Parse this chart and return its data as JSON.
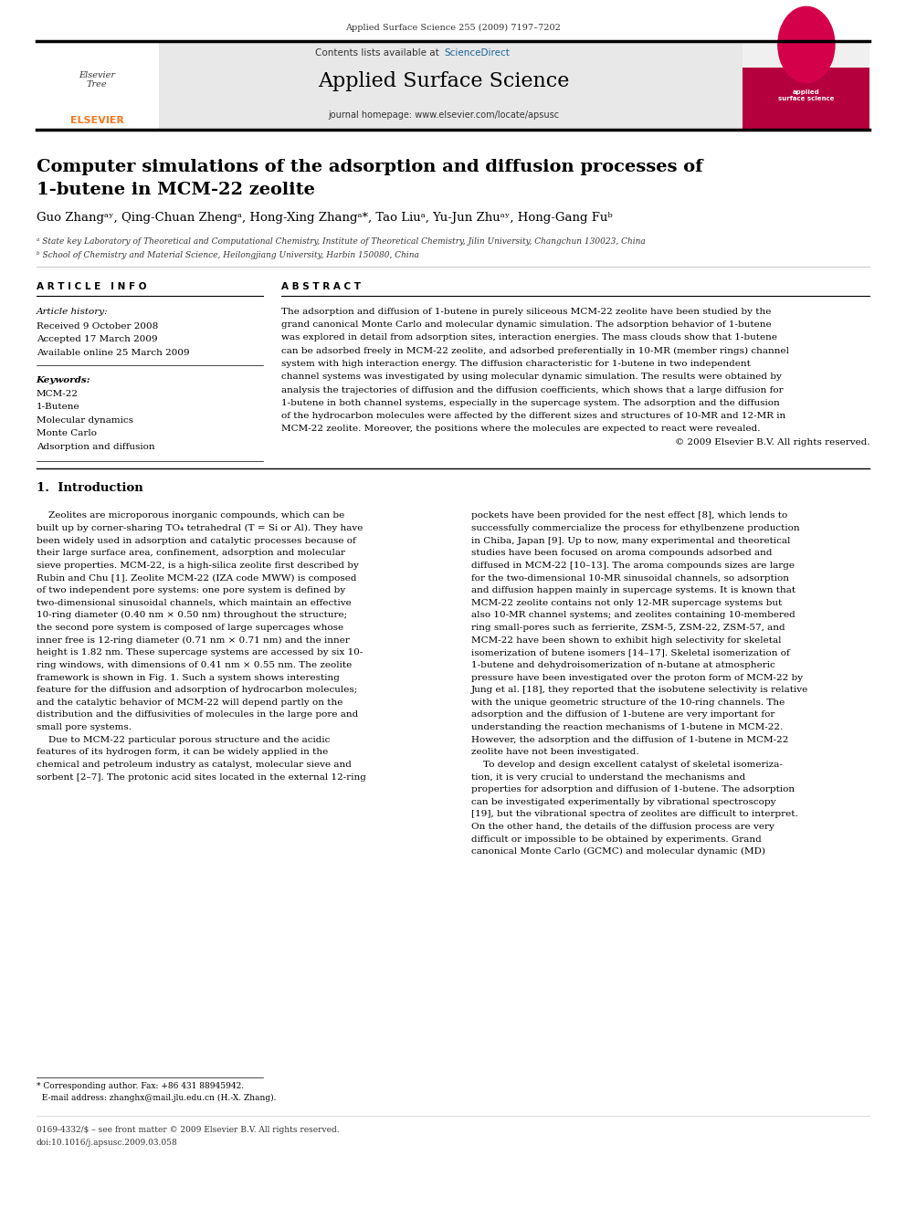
{
  "page_width": 9.92,
  "page_height": 13.23,
  "bg_color": "#ffffff",
  "journal_ref": "Applied Surface Science 255 (2009) 7197–7202",
  "header_bg": "#e8e8e8",
  "header_text1": "Contents lists available at ",
  "header_link": "ScienceDirect",
  "journal_title": "Applied Surface Science",
  "journal_homepage": "journal homepage: www.elsevier.com/locate/apsusc",
  "article_title_line1": "Computer simulations of the adsorption and diffusion processes of",
  "article_title_line2": "1-butene in MCM-22 zeolite",
  "author_str": "Guo Zhangᵃʸ, Qing-Chuan Zhengᵃ, Hong-Xing Zhangᵃ*, Tao Liuᵃ, Yu-Jun Zhuᵃʸ, Hong-Gang Fuᵇ",
  "affil_a": "ᵃ State key Laboratory of Theoretical and Computational Chemistry, Institute of Theoretical Chemistry, Jilin University, Changchun 130023, China",
  "affil_b": "ᵇ School of Chemistry and Material Science, Heilongjiang University, Harbin 150080, China",
  "section_article_info": "A R T I C L E   I N F O",
  "article_history_label": "Article history:",
  "received": "Received 9 October 2008",
  "accepted": "Accepted 17 March 2009",
  "available": "Available online 25 March 2009",
  "keywords_label": "Keywords:",
  "keywords": [
    "MCM-22",
    "1-Butene",
    "Molecular dynamics",
    "Monte Carlo",
    "Adsorption and diffusion"
  ],
  "section_abstract": "A B S T R A C T",
  "abstract_lines": [
    "The adsorption and diffusion of 1-butene in purely siliceous MCM-22 zeolite have been studied by the",
    "grand canonical Monte Carlo and molecular dynamic simulation. The adsorption behavior of 1-butene",
    "was explored in detail from adsorption sites, interaction energies. The mass clouds show that 1-butene",
    "can be adsorbed freely in MCM-22 zeolite, and adsorbed preferentially in 10-MR (member rings) channel",
    "system with high interaction energy. The diffusion characteristic for 1-butene in two independent",
    "channel systems was investigated by using molecular dynamic simulation. The results were obtained by",
    "analysis the trajectories of diffusion and the diffusion coefficients, which shows that a large diffusion for",
    "1-butene in both channel systems, especially in the supercage system. The adsorption and the diffusion",
    "of the hydrocarbon molecules were affected by the different sizes and structures of 10-MR and 12-MR in",
    "MCM-22 zeolite. Moreover, the positions where the molecules are expected to react were revealed.",
    "© 2009 Elsevier B.V. All rights reserved."
  ],
  "section_intro": "1.  Introduction",
  "col1_lines": [
    "    Zeolites are microporous inorganic compounds, which can be",
    "built up by corner-sharing TO₄ tetrahedral (T = Si or Al). They have",
    "been widely used in adsorption and catalytic processes because of",
    "their large surface area, confinement, adsorption and molecular",
    "sieve properties. MCM-22, is a high-silica zeolite first described by",
    "Rubin and Chu [1]. Zeolite MCM-22 (IZA code MWW) is composed",
    "of two independent pore systems: one pore system is defined by",
    "two-dimensional sinusoidal channels, which maintain an effective",
    "10-ring diameter (0.40 nm × 0.50 nm) throughout the structure;",
    "the second pore system is composed of large supercages whose",
    "inner free is 12-ring diameter (0.71 nm × 0.71 nm) and the inner",
    "height is 1.82 nm. These supercage systems are accessed by six 10-",
    "ring windows, with dimensions of 0.41 nm × 0.55 nm. The zeolite",
    "framework is shown in Fig. 1. Such a system shows interesting",
    "feature for the diffusion and adsorption of hydrocarbon molecules;",
    "and the catalytic behavior of MCM-22 will depend partly on the",
    "distribution and the diffusivities of molecules in the large pore and",
    "small pore systems.",
    "    Due to MCM-22 particular porous structure and the acidic",
    "features of its hydrogen form, it can be widely applied in the",
    "chemical and petroleum industry as catalyst, molecular sieve and",
    "sorbent [2–7]. The protonic acid sites located in the external 12-ring"
  ],
  "col2_lines": [
    "pockets have been provided for the nest effect [8], which lends to",
    "successfully commercialize the process for ethylbenzene production",
    "in Chiba, Japan [9]. Up to now, many experimental and theoretical",
    "studies have been focused on aroma compounds adsorbed and",
    "diffused in MCM-22 [10–13]. The aroma compounds sizes are large",
    "for the two-dimensional 10-MR sinusoidal channels, so adsorption",
    "and diffusion happen mainly in supercage systems. It is known that",
    "MCM-22 zeolite contains not only 12-MR supercage systems but",
    "also 10-MR channel systems; and zeolites containing 10-membered",
    "ring small-pores such as ferrierite, ZSM-5, ZSM-22, ZSM-57, and",
    "MCM-22 have been shown to exhibit high selectivity for skeletal",
    "isomerization of butene isomers [14–17]. Skeletal isomerization of",
    "1-butene and dehydroisomerization of n-butane at atmospheric",
    "pressure have been investigated over the proton form of MCM-22 by",
    "Jung et al. [18], they reported that the isobutene selectivity is relative",
    "with the unique geometric structure of the 10-ring channels. The",
    "adsorption and the diffusion of 1-butene are very important for",
    "understanding the reaction mechanisms of 1-butene in MCM-22.",
    "However, the adsorption and the diffusion of 1-butene in MCM-22",
    "zeolite have not been investigated.",
    "    To develop and design excellent catalyst of skeletal isomeriza-",
    "tion, it is very crucial to understand the mechanisms and",
    "properties for adsorption and diffusion of 1-butene. The adsorption",
    "can be investigated experimentally by vibrational spectroscopy",
    "[19], but the vibrational spectra of zeolites are difficult to interpret.",
    "On the other hand, the details of the diffusion process are very",
    "difficult or impossible to be obtained by experiments. Grand",
    "canonical Monte Carlo (GCMC) and molecular dynamic (MD)"
  ],
  "footnote_star": "* Corresponding author. Fax: +86 431 88945942.",
  "footnote_email": "  E-mail address: zhanghx@mail.jlu.edu.cn (H.-X. Zhang).",
  "footer_issn": "0169-4332/$ – see front matter © 2009 Elsevier B.V. All rights reserved.",
  "footer_doi": "doi:10.1016/j.apsusc.2009.03.058",
  "elsevier_color": "#f47920",
  "link_color": "#1a6496",
  "black": "#000000",
  "dark_gray": "#333333",
  "mid_gray": "#666666",
  "light_gray": "#cccccc"
}
